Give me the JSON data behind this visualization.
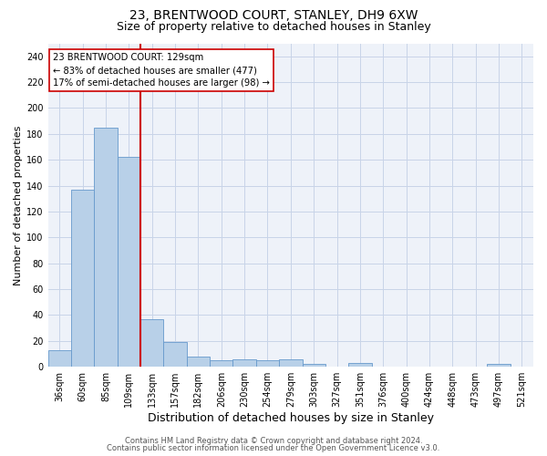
{
  "title1": "23, BRENTWOOD COURT, STANLEY, DH9 6XW",
  "title2": "Size of property relative to detached houses in Stanley",
  "xlabel": "Distribution of detached houses by size in Stanley",
  "ylabel": "Number of detached properties",
  "bar_labels": [
    "36sqm",
    "60sqm",
    "85sqm",
    "109sqm",
    "133sqm",
    "157sqm",
    "182sqm",
    "206sqm",
    "230sqm",
    "254sqm",
    "279sqm",
    "303sqm",
    "327sqm",
    "351sqm",
    "376sqm",
    "400sqm",
    "424sqm",
    "448sqm",
    "473sqm",
    "497sqm",
    "521sqm"
  ],
  "bar_values": [
    13,
    137,
    185,
    162,
    37,
    19,
    8,
    5,
    6,
    5,
    6,
    2,
    0,
    3,
    0,
    0,
    0,
    0,
    0,
    2,
    0
  ],
  "bar_color": "#b8d0e8",
  "bar_edge_color": "#6699cc",
  "vline_color": "#cc0000",
  "annotation_text": "23 BRENTWOOD COURT: 129sqm\n← 83% of detached houses are smaller (477)\n17% of semi-detached houses are larger (98) →",
  "annotation_box_color": "#ffffff",
  "annotation_box_edge_color": "#cc0000",
  "ylim": [
    0,
    250
  ],
  "yticks": [
    0,
    20,
    40,
    60,
    80,
    100,
    120,
    140,
    160,
    180,
    200,
    220,
    240
  ],
  "footer1": "Contains HM Land Registry data © Crown copyright and database right 2024.",
  "footer2": "Contains public sector information licensed under the Open Government Licence v3.0.",
  "bg_color": "#eef2f9",
  "grid_color": "#c8d4e8",
  "title_fontsize": 10,
  "subtitle_fontsize": 9,
  "tick_fontsize": 7,
  "ylabel_fontsize": 8,
  "xlabel_fontsize": 9
}
